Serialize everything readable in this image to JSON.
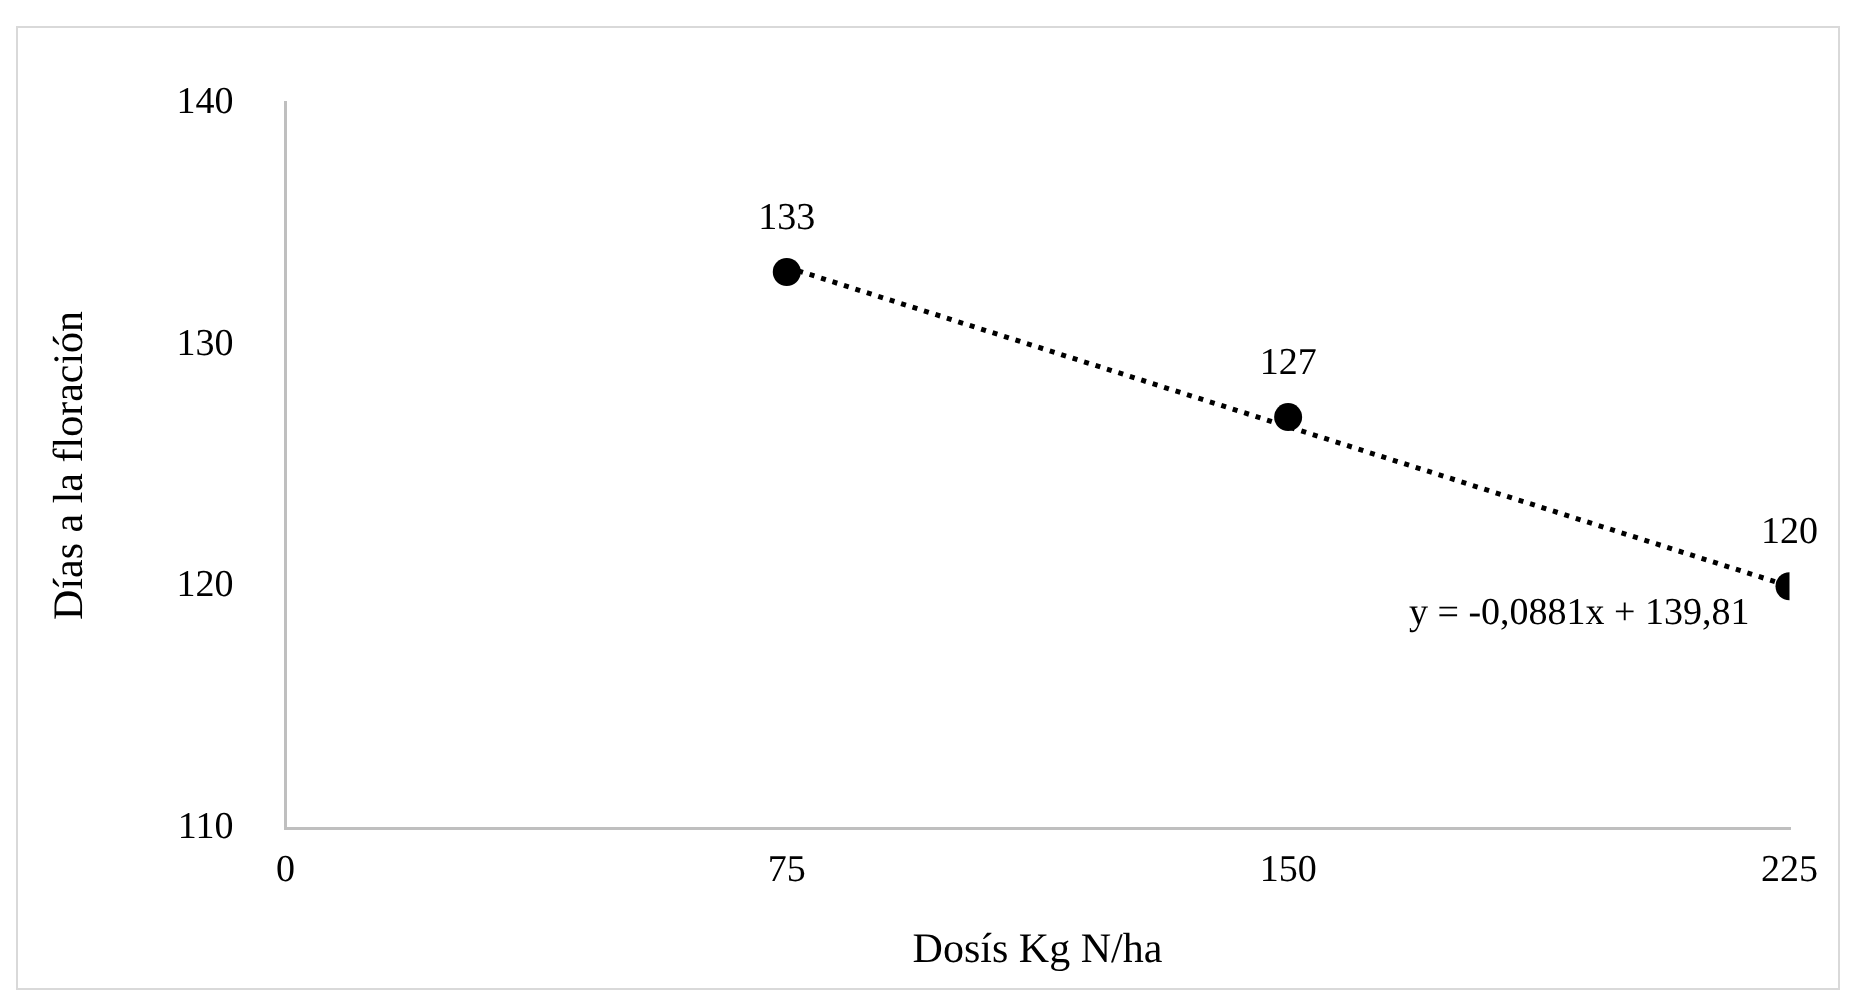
{
  "chart_data": {
    "type": "scatter",
    "xlabel": "Dosís Kg N/ha",
    "ylabel": "Días a la floración",
    "xlim": [
      0,
      225
    ],
    "xticks": [
      0,
      75,
      150,
      225
    ],
    "ylim": [
      110,
      140
    ],
    "yticks": [
      110,
      120,
      130,
      140
    ],
    "grid": false,
    "legend": false,
    "marker": "circle",
    "annotations": [
      "y = -0,0881x + 139,81"
    ],
    "series": [
      {
        "color": "#000000",
        "x": [
          75,
          150,
          225
        ],
        "values": [
          133,
          127,
          120
        ],
        "value_labels": [
          "133",
          "127",
          "120"
        ]
      },
      {
        "type": "line",
        "color": "#000000",
        "line_style": "dotted",
        "marker": "none",
        "x": [
          75,
          225
        ],
        "values": [
          133.2,
          120.0
        ]
      }
    ]
  }
}
